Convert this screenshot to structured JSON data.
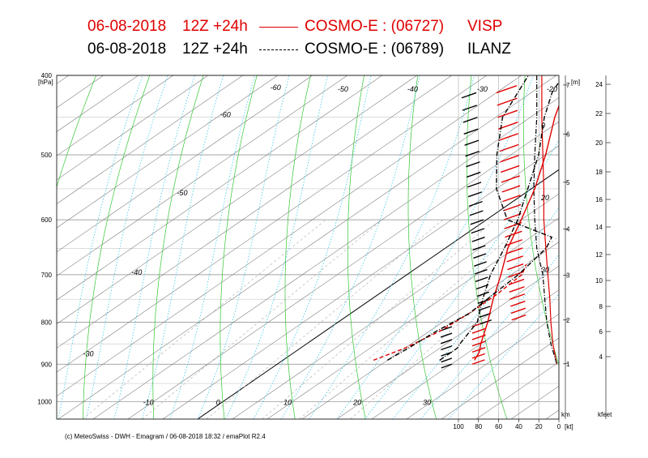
{
  "header": {
    "line1": {
      "date": "06-08-2018",
      "run": "12Z +24h",
      "model": "COSMO-E : (06727)",
      "station": "VISP",
      "color": "#e00000"
    },
    "line2": {
      "date": "06-08-2018",
      "run": "12Z +24h",
      "model": "COSMO-E : (06789)",
      "station": "ILANZ",
      "color": "#000000"
    }
  },
  "footer": "(c) MeteoSwiss - DWH - Emagram / 06-08-2018  18:32 / emaPlot R2.4",
  "chart_data": {
    "type": "line",
    "title": "",
    "pressure_axis": {
      "unit_label": "[hPa]",
      "ticks": [
        400,
        500,
        600,
        700,
        800,
        900,
        1000
      ],
      "range": [
        400,
        1050
      ],
      "scale": "log"
    },
    "temperature_labels": [
      "-60",
      "-50",
      "-40",
      "-30",
      "-20",
      "-10",
      "0",
      "10",
      "20",
      "30"
    ],
    "skewed_isotherm_labels": [
      "-60",
      "-50",
      "-40",
      "-30",
      "-20",
      "-10",
      "0",
      "10",
      "20",
      "30"
    ],
    "height_axis_m": {
      "unit_label": "[m]",
      "bottom_label": "km",
      "ticks": [
        "1",
        "2",
        "3",
        "4",
        "5",
        "6",
        "7"
      ]
    },
    "height_axis_kfeet": {
      "bottom_label": "kfeet",
      "ticks": [
        "4",
        "6",
        "8",
        "10",
        "12",
        "14",
        "16",
        "18",
        "20",
        "22",
        "24"
      ]
    },
    "wind_speed_axis": {
      "unit_label": "[kt]",
      "ticks": [
        "100",
        "80",
        "60",
        "40",
        "20",
        "0"
      ]
    },
    "wind_panel_labels": [
      "0",
      "20",
      "30"
    ],
    "series": [
      {
        "name": "VISP",
        "color": "#e00000",
        "style": "solid",
        "kind": "temperature",
        "points": [
          [
            890,
            27.5
          ],
          [
            870,
            26.5
          ],
          [
            850,
            25
          ],
          [
            800,
            21.5
          ],
          [
            750,
            17.5
          ],
          [
            700,
            13.5
          ],
          [
            650,
            9
          ],
          [
            600,
            5
          ],
          [
            550,
            0.5
          ],
          [
            500,
            -5
          ],
          [
            450,
            -11.5
          ],
          [
            400,
            -18
          ]
        ]
      },
      {
        "name": "VISP",
        "color": "#e00000",
        "style": "dashed",
        "kind": "dewpoint",
        "points": [
          [
            890,
            13
          ],
          [
            860,
            15
          ],
          [
            820,
            16.5
          ],
          [
            780,
            17
          ],
          [
            740,
            17
          ],
          [
            700,
            16.5
          ],
          [
            680,
            15
          ]
        ]
      },
      {
        "name": "ILANZ",
        "color": "#000000",
        "style": "dashdot",
        "kind": "temperature",
        "points": [
          [
            890,
            22.5
          ],
          [
            860,
            22.5
          ],
          [
            850,
            22
          ],
          [
            800,
            20
          ],
          [
            750,
            16
          ],
          [
            700,
            12
          ],
          [
            650,
            8.5
          ],
          [
            600,
            4.5
          ],
          [
            550,
            -0.5
          ],
          [
            500,
            -6
          ],
          [
            450,
            -13
          ],
          [
            420,
            -17
          ],
          [
            400,
            -19
          ]
        ]
      },
      {
        "name": "ILANZ",
        "color": "#000000",
        "style": "dashdot",
        "kind": "dewpoint",
        "points": [
          [
            890,
            15
          ],
          [
            860,
            15.5
          ],
          [
            820,
            16
          ],
          [
            780,
            17
          ],
          [
            740,
            16.5
          ],
          [
            700,
            16
          ],
          [
            650,
            14.5
          ],
          [
            630,
            13
          ],
          [
            600,
            3
          ],
          [
            550,
            -5
          ],
          [
            500,
            -12
          ],
          [
            450,
            -19
          ],
          [
            400,
            -24
          ]
        ]
      }
    ]
  }
}
